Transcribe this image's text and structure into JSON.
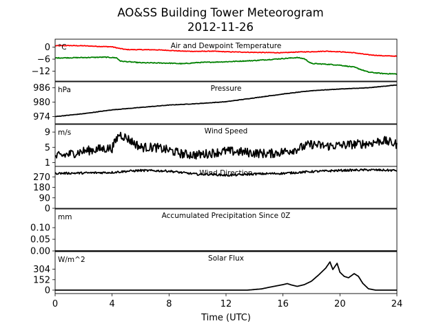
{
  "figure": {
    "title_line1": "AO&SS Building Tower Meteorogram",
    "title_line2": "2012-11-26",
    "xlabel": "Time (UTC)"
  },
  "colors": {
    "temperature": "#ff0000",
    "dewpoint": "#008000",
    "default": "#000000"
  },
  "chart_data": [
    {
      "type": "line",
      "title": "Air and Dewpoint Temperature",
      "unit_label": "°C",
      "xlim": [
        0,
        24
      ],
      "ylim": [
        -17,
        4
      ],
      "yticks": [
        0,
        -6,
        -12
      ],
      "ytick_labels": [
        "0",
        "−6",
        "−12"
      ],
      "series": [
        {
          "name": "",
          "color": "#ff0000",
          "noise": 0.15,
          "points": [
            [
              0,
              0.7
            ],
            [
              1,
              0.8
            ],
            [
              2,
              0.7
            ],
            [
              3,
              0.4
            ],
            [
              4,
              0.2
            ],
            [
              4.5,
              -0.6
            ],
            [
              5,
              -1.2
            ],
            [
              7,
              -1.3
            ],
            [
              8,
              -1.6
            ],
            [
              9,
              -2.0
            ],
            [
              10,
              -2.1
            ],
            [
              11,
              -2.0
            ],
            [
              12,
              -2.3
            ],
            [
              14,
              -2.6
            ],
            [
              16,
              -2.8
            ],
            [
              17,
              -2.4
            ],
            [
              18,
              -2.3
            ],
            [
              19,
              -2.0
            ],
            [
              20,
              -2.3
            ],
            [
              21,
              -2.8
            ],
            [
              22,
              -3.8
            ],
            [
              23,
              -4.3
            ],
            [
              24,
              -4.5
            ]
          ]
        },
        {
          "name": "",
          "color": "#008000",
          "noise": 0.2,
          "points": [
            [
              0,
              -5.4
            ],
            [
              2,
              -5.2
            ],
            [
              3.5,
              -5.0
            ],
            [
              4.3,
              -5.3
            ],
            [
              4.6,
              -7.0
            ],
            [
              6,
              -7.8
            ],
            [
              8,
              -8.0
            ],
            [
              9,
              -8.3
            ],
            [
              10,
              -7.7
            ],
            [
              12,
              -7.3
            ],
            [
              14,
              -6.7
            ],
            [
              16,
              -5.7
            ],
            [
              17,
              -5.2
            ],
            [
              17.5,
              -5.8
            ],
            [
              18,
              -8.2
            ],
            [
              19,
              -8.5
            ],
            [
              20,
              -9.0
            ],
            [
              21,
              -10.0
            ],
            [
              22,
              -12.5
            ],
            [
              23,
              -13.2
            ],
            [
              24,
              -13.4
            ]
          ]
        }
      ]
    },
    {
      "type": "line",
      "title": "Pressure",
      "unit_label": "hPa",
      "xlim": [
        0,
        24
      ],
      "ylim": [
        971,
        988.5
      ],
      "yticks": [
        986,
        980,
        974
      ],
      "ytick_labels": [
        "986",
        "980",
        "974"
      ],
      "series": [
        {
          "name": "",
          "color": "#000000",
          "noise": 0.08,
          "points": [
            [
              0,
              974.0
            ],
            [
              2,
              975.2
            ],
            [
              4,
              976.8
            ],
            [
              6,
              977.8
            ],
            [
              8,
              978.8
            ],
            [
              10,
              979.4
            ],
            [
              12,
              980.2
            ],
            [
              14,
              981.8
            ],
            [
              16,
              983.4
            ],
            [
              18,
              984.8
            ],
            [
              20,
              985.5
            ],
            [
              22,
              986.0
            ],
            [
              24,
              987.2
            ]
          ]
        }
      ]
    },
    {
      "type": "line",
      "title": "Wind Speed",
      "unit_label": "m/s",
      "xlim": [
        0,
        24
      ],
      "ylim": [
        0,
        11
      ],
      "yticks": [
        9,
        5,
        1
      ],
      "ytick_labels": [
        "9",
        "5",
        "1"
      ],
      "series": [
        {
          "name": "",
          "color": "#000000",
          "noise": 1.2,
          "points": [
            [
              0,
              2.5
            ],
            [
              1,
              3.2
            ],
            [
              2,
              4.0
            ],
            [
              3,
              4.5
            ],
            [
              4,
              4.8
            ],
            [
              4.5,
              8.5
            ],
            [
              5,
              7.5
            ],
            [
              6,
              5.0
            ],
            [
              7,
              5.0
            ],
            [
              8,
              4.2
            ],
            [
              9,
              3.2
            ],
            [
              10,
              3.0
            ],
            [
              11,
              3.5
            ],
            [
              12,
              4.0
            ],
            [
              13,
              3.8
            ],
            [
              14,
              3.5
            ],
            [
              15,
              3.3
            ],
            [
              16,
              3.8
            ],
            [
              17,
              4.6
            ],
            [
              18,
              5.8
            ],
            [
              19,
              5.3
            ],
            [
              20,
              5.5
            ],
            [
              21,
              5.8
            ],
            [
              22,
              6.0
            ],
            [
              23,
              6.8
            ],
            [
              24,
              5.8
            ]
          ]
        }
      ]
    },
    {
      "type": "line",
      "title": "Wind Direction",
      "unit_label": "",
      "xlim": [
        0,
        24
      ],
      "ylim": [
        0,
        360
      ],
      "yticks": [
        270,
        180,
        90,
        0
      ],
      "ytick_labels": [
        "270",
        "180",
        "90",
        "0"
      ],
      "series": [
        {
          "name": "",
          "color": "#000000",
          "noise": 9,
          "points": [
            [
              0,
              300
            ],
            [
              2,
              303
            ],
            [
              4,
              308
            ],
            [
              5,
              318
            ],
            [
              6,
              325
            ],
            [
              8,
              320
            ],
            [
              9,
              305
            ],
            [
              10,
              292
            ],
            [
              11,
              292
            ],
            [
              12,
              283
            ],
            [
              13,
              288
            ],
            [
              14,
              295
            ],
            [
              16,
              300
            ],
            [
              18,
              315
            ],
            [
              20,
              325
            ],
            [
              22,
              330
            ],
            [
              24,
              325
            ]
          ]
        }
      ]
    },
    {
      "type": "line",
      "title": "Accumulated Precipitation Since 0Z",
      "unit_label": "mm",
      "xlim": [
        0,
        24
      ],
      "ylim": [
        0,
        0.18
      ],
      "yticks": [
        0.1,
        0.05,
        0.0
      ],
      "ytick_labels": [
        "0.10",
        "0.05",
        "0.00"
      ],
      "series": [
        {
          "name": "",
          "color": "#000000",
          "noise": 0,
          "points": [
            [
              0,
              0
            ],
            [
              24,
              0
            ]
          ]
        }
      ]
    },
    {
      "type": "line",
      "title": "Solar Flux",
      "unit_label": "W/m^2",
      "xlim": [
        0,
        24
      ],
      "ylim": [
        -50,
        560
      ],
      "yticks": [
        304,
        152,
        0
      ],
      "ytick_labels": [
        "304",
        "152",
        "0"
      ],
      "series": [
        {
          "name": "",
          "color": "#000000",
          "noise": 0,
          "points": [
            [
              0,
              0
            ],
            [
              13.5,
              0
            ],
            [
              14.5,
              18
            ],
            [
              15,
              40
            ],
            [
              15.5,
              60
            ],
            [
              16,
              80
            ],
            [
              16.3,
              95
            ],
            [
              16.6,
              75
            ],
            [
              17,
              55
            ],
            [
              17.5,
              80
            ],
            [
              18,
              130
            ],
            [
              18.5,
              220
            ],
            [
              19,
              320
            ],
            [
              19.3,
              410
            ],
            [
              19.5,
              300
            ],
            [
              19.8,
              390
            ],
            [
              20,
              260
            ],
            [
              20.3,
              200
            ],
            [
              20.6,
              180
            ],
            [
              21,
              240
            ],
            [
              21.3,
              200
            ],
            [
              21.6,
              100
            ],
            [
              22,
              20
            ],
            [
              22.5,
              0
            ],
            [
              24,
              0
            ]
          ]
        }
      ]
    }
  ],
  "xaxis": {
    "ticks": [
      0,
      4,
      8,
      12,
      16,
      20,
      24
    ],
    "tick_labels": [
      "0",
      "4",
      "8",
      "12",
      "16",
      "20",
      "24"
    ]
  }
}
